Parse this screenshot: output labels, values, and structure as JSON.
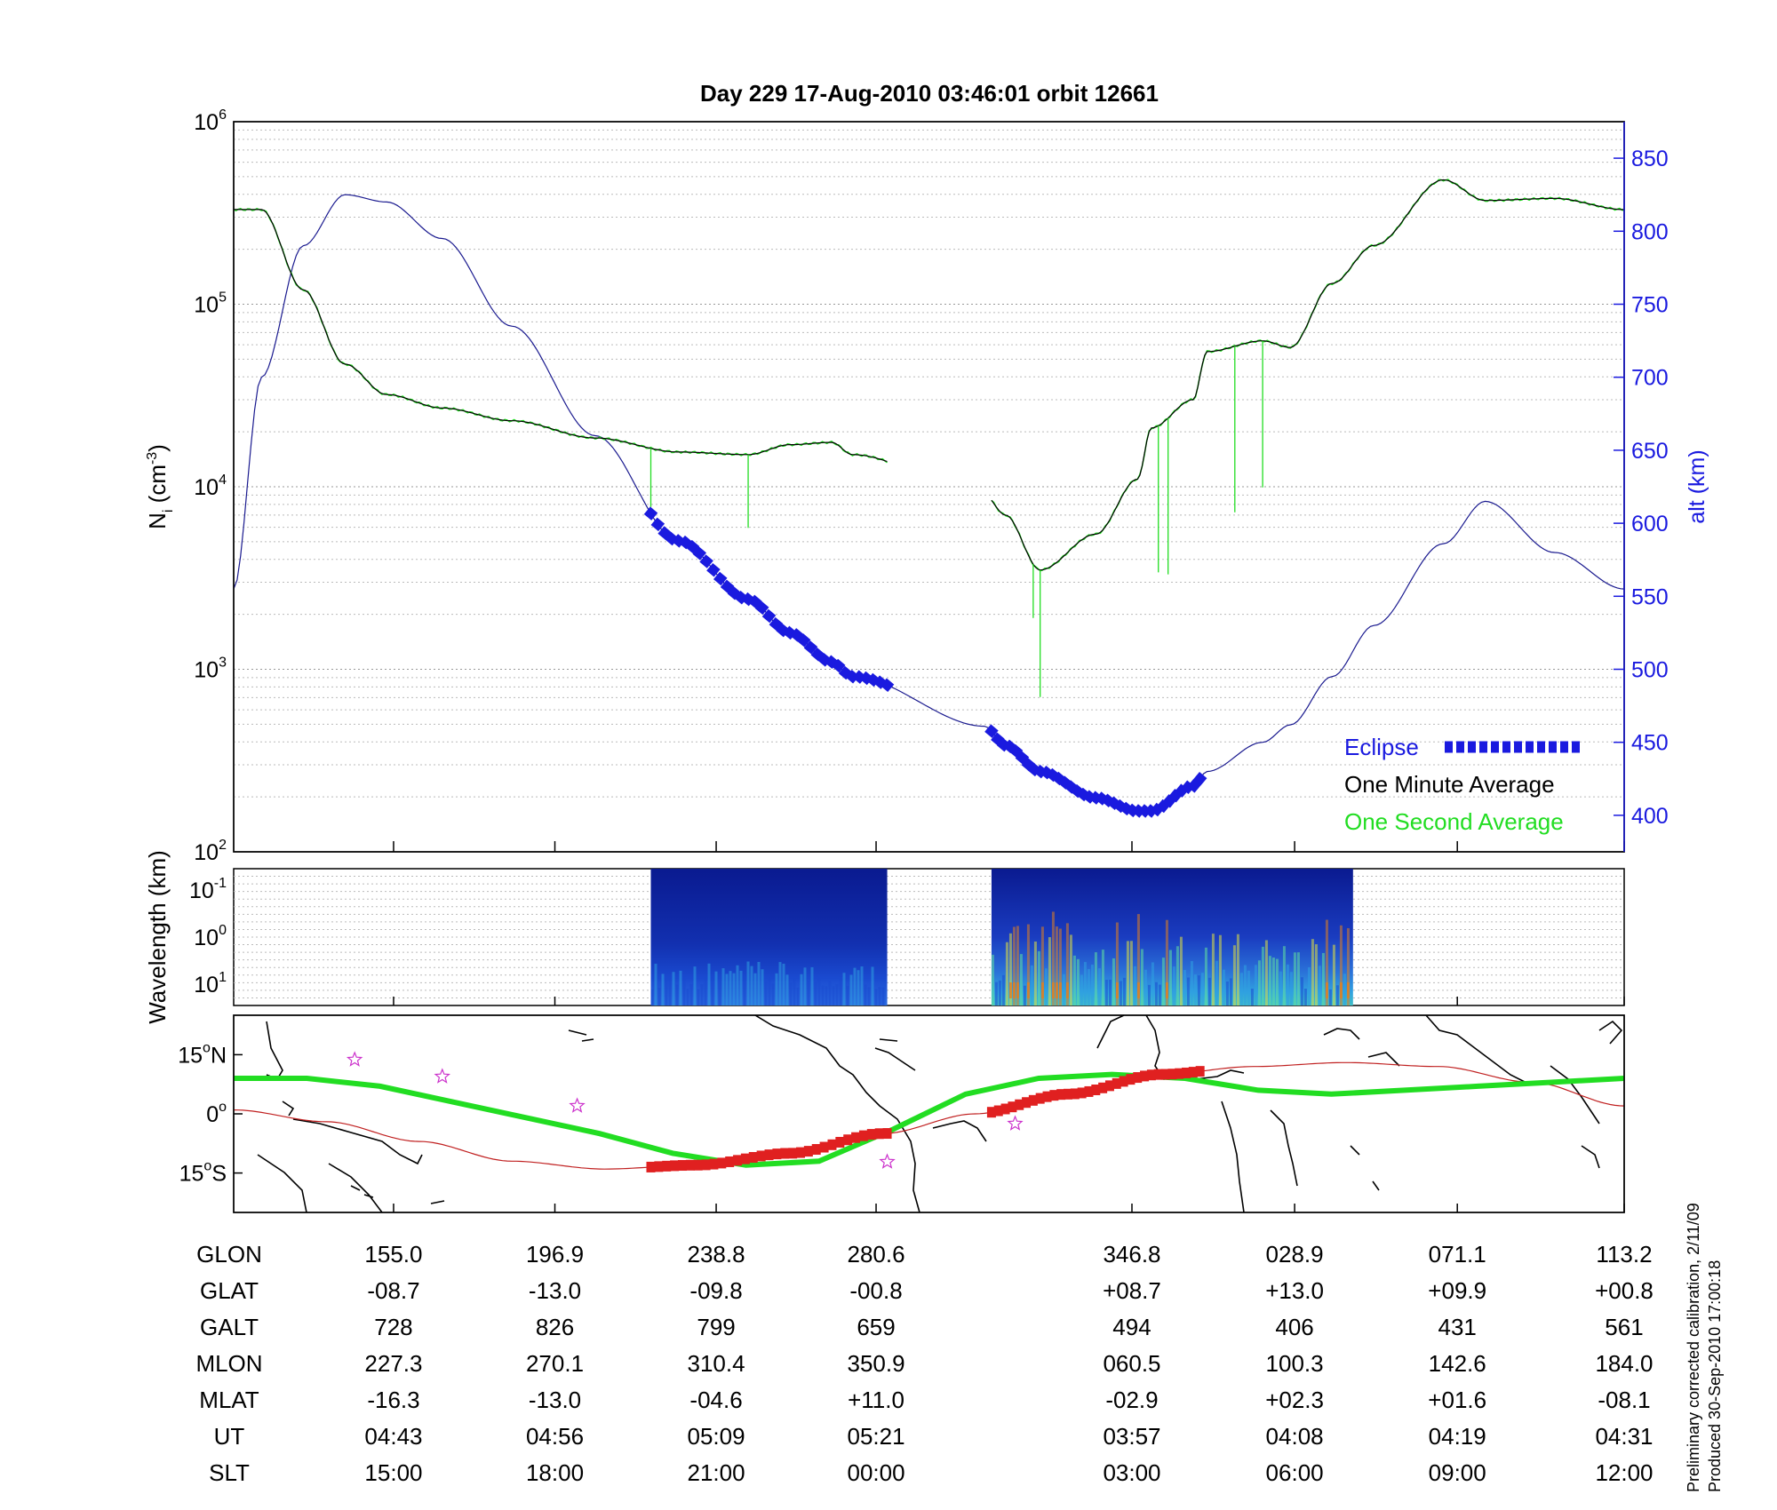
{
  "title": "Day 229  17-Aug-2010 03:46:01   orbit 12661",
  "chart_data": [
    {
      "type": "line",
      "panel": "density",
      "ylabel_base": "N",
      "ylabel_sub": "i",
      "ylabel_unit_pre": " (cm",
      "ylabel_unit_sup": "-3",
      "ylabel_unit_post": ")",
      "yscale": "log",
      "ylim": [
        100,
        1000000
      ],
      "y_ticks": [
        {
          "base": "10",
          "exp": "6"
        },
        {
          "base": "10",
          "exp": "5"
        },
        {
          "base": "10",
          "exp": "4"
        },
        {
          "base": "10",
          "exp": "3"
        },
        {
          "base": "10",
          "exp": "2"
        }
      ],
      "y2label": "alt (km)",
      "y2lim": [
        375,
        875
      ],
      "y2_ticks": [
        "850",
        "800",
        "750",
        "700",
        "650",
        "600",
        "550",
        "500",
        "450",
        "400"
      ],
      "grid": true,
      "legend_position": "bottom-right",
      "legend": [
        {
          "label": "Eclipse",
          "color": "#1a1adf"
        },
        {
          "label": "One Minute Average",
          "color": "#000000"
        },
        {
          "label": "One Second Average",
          "color": "#22dd22"
        }
      ],
      "x": [
        0,
        0.02,
        0.05,
        0.08,
        0.11,
        0.15,
        0.2,
        0.26,
        0.32,
        0.37,
        0.4,
        0.43,
        0.445,
        0.54,
        0.555,
        0.58,
        0.62,
        0.65,
        0.66,
        0.69,
        0.7,
        0.74,
        0.76,
        0.79,
        0.82,
        0.87,
        0.9,
        0.95,
        1
      ],
      "one_minute_average": [
        330000,
        330000,
        120000,
        47000,
        32000,
        27000,
        23000,
        18500,
        15500,
        15000,
        17000,
        17500,
        15000,
        9000,
        7000,
        3500,
        5500,
        11000,
        21000,
        30000,
        55000,
        63000,
        58000,
        130000,
        210000,
        480000,
        370000,
        380000,
        330000
      ],
      "altitude_km": [
        555,
        700,
        790,
        825,
        820,
        795,
        735,
        660,
        588,
        548,
        525,
        505,
        495,
        461,
        448,
        430,
        412,
        403,
        403,
        420,
        430,
        450,
        462,
        495,
        530,
        586,
        615,
        580,
        555
      ],
      "eclipse_segments": [
        [
          0.3,
          0.47
        ],
        [
          0.545,
          0.695
        ]
      ]
    },
    {
      "type": "heatmap",
      "panel": "spectrogram",
      "ylabel": "Wavelength (km)",
      "y_ticks": [
        {
          "base": "10",
          "exp": "-1"
        },
        {
          "base": "10",
          "exp": "0"
        },
        {
          "base": "10",
          "exp": "1"
        }
      ],
      "data_segments": [
        [
          0.3,
          0.47
        ],
        [
          0.545,
          0.805
        ]
      ],
      "colorscale": [
        "#0a1a90",
        "#1a4ad0",
        "#30a0e0",
        "#60e0a0",
        "#e0e040",
        "#e08020"
      ]
    },
    {
      "type": "line",
      "panel": "map",
      "y_ticks": [
        {
          "value": "15",
          "deg": "o",
          "hemi": "N"
        },
        {
          "value": "0",
          "deg": "o",
          "hemi": ""
        },
        {
          "value": "15",
          "deg": "o",
          "hemi": "S"
        }
      ],
      "ylim": [
        -25,
        25
      ],
      "magnetic_equator_lat": [
        9,
        9,
        7,
        3,
        -1,
        -5,
        -10,
        -13,
        -12,
        -4,
        5,
        9,
        10,
        9,
        6,
        5,
        6,
        7,
        8,
        9
      ],
      "orbit_track_lat": [
        1,
        -2,
        -7,
        -12,
        -14,
        -13,
        -10,
        -5,
        0,
        5,
        10,
        12,
        13,
        12,
        8,
        2
      ],
      "red_segments": [
        [
          0.3,
          0.47
        ],
        [
          0.545,
          0.695
        ]
      ]
    }
  ],
  "table": {
    "row_labels": [
      "GLON",
      "GLAT",
      "GALT",
      "MLON",
      "MLAT",
      "UT",
      "SLT"
    ],
    "columns": [
      [
        "155.0",
        "-08.7",
        "728",
        "227.3",
        "-16.3",
        "04:43",
        "15:00"
      ],
      [
        "196.9",
        "-13.0",
        "826",
        "270.1",
        "-13.0",
        "04:56",
        "18:00"
      ],
      [
        "238.8",
        "-09.8",
        "799",
        "310.4",
        "-04.6",
        "05:09",
        "21:00"
      ],
      [
        "280.6",
        "-00.8",
        "659",
        "350.9",
        "+11.0",
        "05:21",
        "00:00"
      ],
      [
        "346.8",
        "+08.7",
        "494",
        "060.5",
        "-02.9",
        "03:57",
        "03:00"
      ],
      [
        "028.9",
        "+13.0",
        "406",
        "100.3",
        "+02.3",
        "04:08",
        "06:00"
      ],
      [
        "071.1",
        "+09.9",
        "431",
        "142.6",
        "+01.6",
        "04:19",
        "09:00"
      ],
      [
        "113.2",
        "+00.8",
        "561",
        "184.0",
        "-08.1",
        "04:31",
        "12:00"
      ]
    ]
  },
  "side_notes": [
    "Preliminary corrected calibration, 2/11/09",
    "Produced 30-Sep-2010 17:00:18"
  ],
  "colors": {
    "eclipse": "#1a1adf",
    "one_minute": "#000000",
    "one_second": "#22dd22",
    "altitude": "#1a1a8f",
    "orbit_red": "#e02020",
    "right_axis": "#1a1adf"
  }
}
